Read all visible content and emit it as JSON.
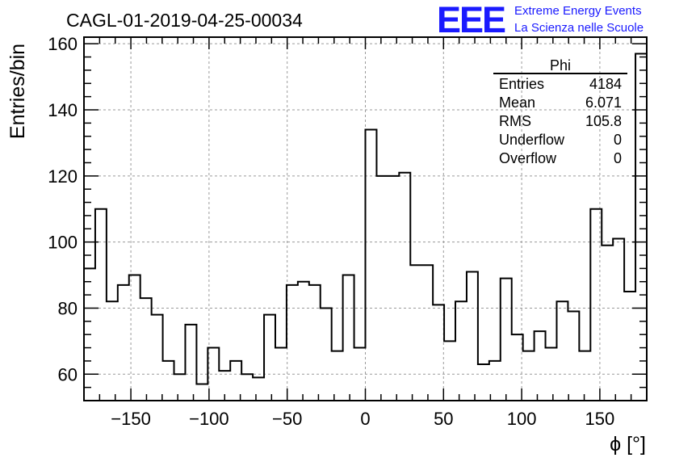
{
  "chart_data": {
    "type": "histogram",
    "title": "CAGL-01-2019-04-25-00034",
    "xlabel": "ϕ [°]",
    "ylabel": "Entries/bin",
    "xlim": [
      -180,
      180
    ],
    "ylim": [
      52,
      162
    ],
    "xticks": [
      -150,
      -100,
      -50,
      0,
      50,
      100,
      150
    ],
    "xtick_labels": [
      "−150",
      "−100",
      "−50",
      "0",
      "50",
      "100",
      "150"
    ],
    "yticks": [
      60,
      80,
      100,
      120,
      140,
      160
    ],
    "ytick_labels": [
      "60",
      "80",
      "100",
      "120",
      "140",
      "160"
    ],
    "grid": true,
    "bin_width": 7.2,
    "bin_edges_start": -180,
    "values": [
      92,
      110,
      82,
      87,
      90,
      83,
      78,
      64,
      60,
      75,
      57,
      68,
      61,
      64,
      60,
      59,
      78,
      68,
      87,
      88,
      87,
      80,
      67,
      90,
      68,
      134,
      120,
      120,
      121,
      93,
      93,
      81,
      70,
      82,
      91,
      63,
      64,
      89,
      72,
      67,
      73,
      68,
      82,
      79,
      67,
      110,
      99,
      101,
      85,
      157
    ],
    "color": "#000000"
  },
  "stats": {
    "title": "Phi",
    "rows": [
      {
        "label": "Entries",
        "value": "4184"
      },
      {
        "label": "Mean",
        "value": "6.071"
      },
      {
        "label": "RMS",
        "value": "105.8"
      },
      {
        "label": "Underflow",
        "value": "0"
      },
      {
        "label": "Overflow",
        "value": "0"
      }
    ]
  },
  "logo": {
    "mark": "EEE",
    "line1": "Extreme Energy Events",
    "line2": "La Scienza nelle Scuole",
    "color": "#1a1aff"
  }
}
